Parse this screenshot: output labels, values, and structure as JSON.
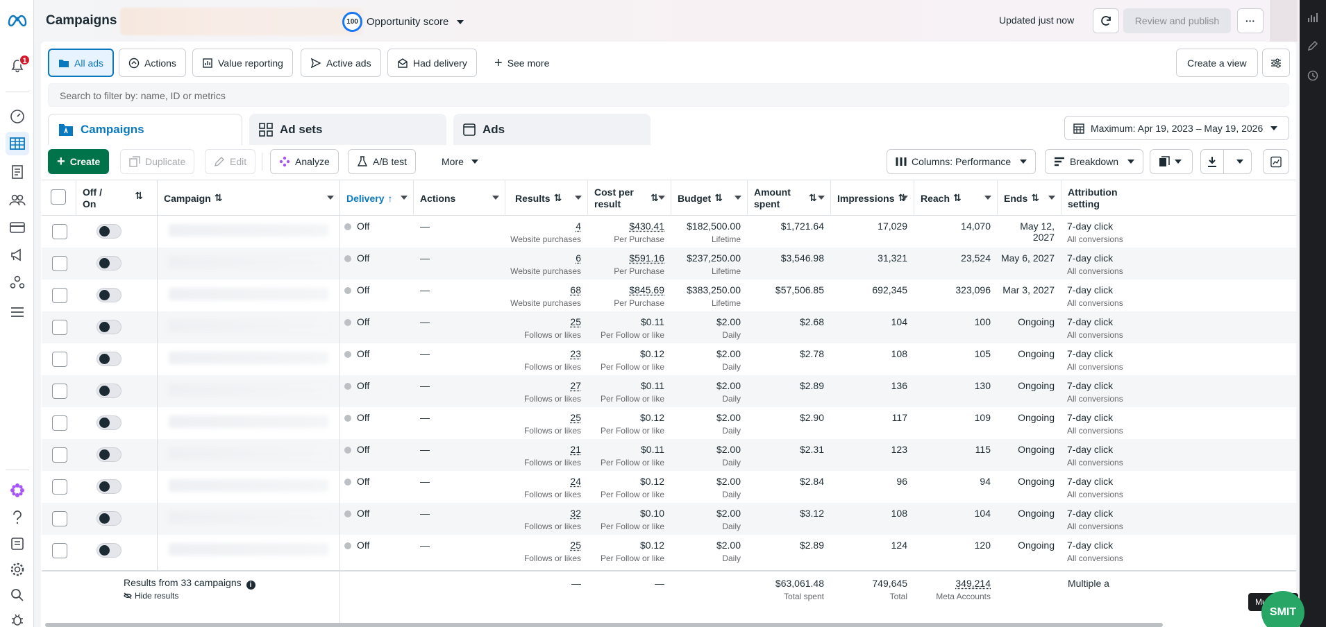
{
  "header": {
    "title": "Campaigns",
    "opportunity_value": "100",
    "opportunity_label": "Opportunity score",
    "updated": "Updated just now",
    "review_publish": "Review and publish",
    "more": "···"
  },
  "nav": {
    "notification_count": "1"
  },
  "views": [
    {
      "label": "All ads",
      "icon": "folder-icon"
    },
    {
      "label": "Actions",
      "icon": "actions-icon"
    },
    {
      "label": "Value reporting",
      "icon": "value-icon"
    },
    {
      "label": "Active ads",
      "icon": "send-icon"
    },
    {
      "label": "Had delivery",
      "icon": "mail-icon"
    }
  ],
  "see_more": "See more",
  "create_view": "Create a view",
  "search": {
    "placeholder": "Search to filter by: name, ID or metrics"
  },
  "tabs": [
    "Campaigns",
    "Ad sets",
    "Ads"
  ],
  "date_range": "Maximum: Apr 19, 2023 – May 19, 2026",
  "toolbar": {
    "create": "Create",
    "duplicate": "Duplicate",
    "edit": "Edit",
    "analyze": "Analyze",
    "ab_test": "A/B test",
    "more": "More",
    "columns": "Columns: Performance",
    "breakdown": "Breakdown"
  },
  "columns": {
    "off_on": "Off /\nOn",
    "campaign": "Campaign",
    "delivery": "Delivery",
    "actions": "Actions",
    "results": "Results",
    "cost_per_result": "Cost per result",
    "budget": "Budget",
    "amount_spent": "Amount spent",
    "impressions": "Impressions",
    "reach": "Reach",
    "ends": "Ends",
    "attribution": "Attribution setting"
  },
  "rows": [
    {
      "delivery": "Off",
      "actions": "—",
      "results": "4",
      "results_sub": "Website purchases",
      "cpr": "$430.41",
      "cpr_sub": "Per Purchase",
      "budget": "$182,500.00",
      "budget_sub": "Lifetime",
      "spent": "$1,721.64",
      "impressions": "17,029",
      "reach": "14,070",
      "ends": "May 12, 2027",
      "attr": "7-day click",
      "attr_sub": "All conversions"
    },
    {
      "delivery": "Off",
      "actions": "—",
      "results": "6",
      "results_sub": "Website purchases",
      "cpr": "$591.16",
      "cpr_sub": "Per Purchase",
      "budget": "$237,250.00",
      "budget_sub": "Lifetime",
      "spent": "$3,546.98",
      "impressions": "31,321",
      "reach": "23,524",
      "ends": "May 6, 2027",
      "attr": "7-day click",
      "attr_sub": "All conversions"
    },
    {
      "delivery": "Off",
      "actions": "—",
      "results": "68",
      "results_sub": "Website purchases",
      "cpr": "$845.69",
      "cpr_sub": "Per Purchase",
      "budget": "$383,250.00",
      "budget_sub": "Lifetime",
      "spent": "$57,506.85",
      "impressions": "692,345",
      "reach": "323,096",
      "ends": "Mar 3, 2027",
      "attr": "7-day click",
      "attr_sub": "All conversions"
    },
    {
      "delivery": "Off",
      "actions": "—",
      "results": "25",
      "results_sub": "Follows or likes",
      "cpr": "$0.11",
      "cpr_sub": "Per Follow or like",
      "budget": "$2.00",
      "budget_sub": "Daily",
      "spent": "$2.68",
      "impressions": "104",
      "reach": "100",
      "ends": "Ongoing",
      "attr": "7-day click",
      "attr_sub": "All conversions"
    },
    {
      "delivery": "Off",
      "actions": "—",
      "results": "23",
      "results_sub": "Follows or likes",
      "cpr": "$0.12",
      "cpr_sub": "Per Follow or like",
      "budget": "$2.00",
      "budget_sub": "Daily",
      "spent": "$2.78",
      "impressions": "108",
      "reach": "105",
      "ends": "Ongoing",
      "attr": "7-day click",
      "attr_sub": "All conversions"
    },
    {
      "delivery": "Off",
      "actions": "—",
      "results": "27",
      "results_sub": "Follows or likes",
      "cpr": "$0.11",
      "cpr_sub": "Per Follow or like",
      "budget": "$2.00",
      "budget_sub": "Daily",
      "spent": "$2.89",
      "impressions": "136",
      "reach": "130",
      "ends": "Ongoing",
      "attr": "7-day click",
      "attr_sub": "All conversions"
    },
    {
      "delivery": "Off",
      "actions": "—",
      "results": "25",
      "results_sub": "Follows or likes",
      "cpr": "$0.12",
      "cpr_sub": "Per Follow or like",
      "budget": "$2.00",
      "budget_sub": "Daily",
      "spent": "$2.90",
      "impressions": "117",
      "reach": "109",
      "ends": "Ongoing",
      "attr": "7-day click",
      "attr_sub": "All conversions"
    },
    {
      "delivery": "Off",
      "actions": "—",
      "results": "21",
      "results_sub": "Follows or likes",
      "cpr": "$0.11",
      "cpr_sub": "Per Follow or like",
      "budget": "$2.00",
      "budget_sub": "Daily",
      "spent": "$2.31",
      "impressions": "123",
      "reach": "115",
      "ends": "Ongoing",
      "attr": "7-day click",
      "attr_sub": "All conversions"
    },
    {
      "delivery": "Off",
      "actions": "—",
      "results": "24",
      "results_sub": "Follows or likes",
      "cpr": "$0.12",
      "cpr_sub": "Per Follow or like",
      "budget": "$2.00",
      "budget_sub": "Daily",
      "spent": "$2.84",
      "impressions": "96",
      "reach": "94",
      "ends": "Ongoing",
      "attr": "7-day click",
      "attr_sub": "All conversions"
    },
    {
      "delivery": "Off",
      "actions": "—",
      "results": "32",
      "results_sub": "Follows or likes",
      "cpr": "$0.10",
      "cpr_sub": "Per Follow or like",
      "budget": "$2.00",
      "budget_sub": "Daily",
      "spent": "$3.12",
      "impressions": "108",
      "reach": "104",
      "ends": "Ongoing",
      "attr": "7-day click",
      "attr_sub": "All conversions"
    },
    {
      "delivery": "Off",
      "actions": "—",
      "results": "25",
      "results_sub": "Follows or likes",
      "cpr": "$0.12",
      "cpr_sub": "Per Follow or like",
      "budget": "$2.00",
      "budget_sub": "Daily",
      "spent": "$2.89",
      "impressions": "124",
      "reach": "120",
      "ends": "Ongoing",
      "attr": "7-day click",
      "attr_sub": "All conversions"
    }
  ],
  "footer": {
    "summary": "Results from 33 campaigns",
    "hide": "Hide results",
    "results": "—",
    "cpr": "—",
    "spent": "$63,061.48",
    "spent_sub": "Total spent",
    "impressions": "749,645",
    "impressions_sub": "Total",
    "reach": "349,214",
    "reach_sub": "Meta Accounts",
    "attr": "Multiple a"
  },
  "tooltip": "Multiple attribution se",
  "smit": "SMIT"
}
